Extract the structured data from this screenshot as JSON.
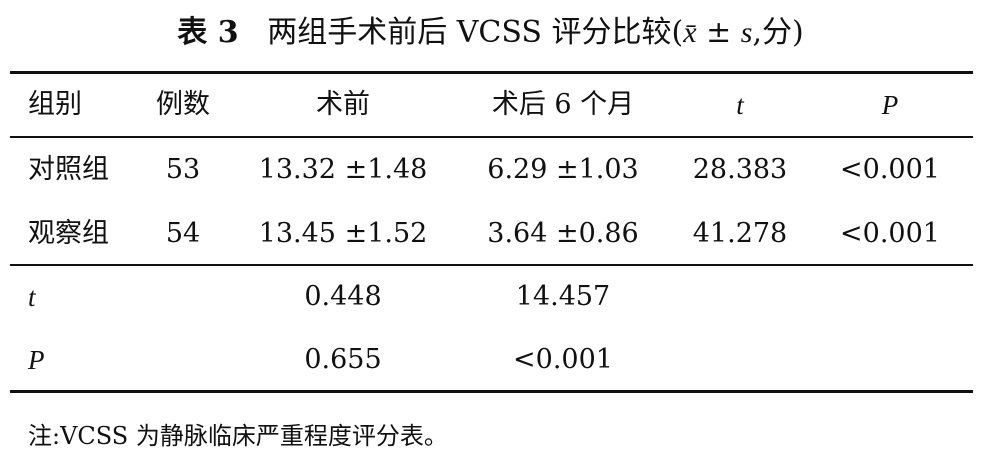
{
  "title": {
    "label": "表 3",
    "text": "两组手术前后 VCSS 评分比较(",
    "mean_symbol": "x̄",
    "plus_minus": " ± ",
    "sd_symbol": "s",
    "unit": ",分)"
  },
  "table": {
    "header": [
      "组别",
      "例数",
      "术前",
      "术后 6 个月",
      "t",
      "P"
    ],
    "rows": [
      [
        "对照组",
        "53",
        "13.32 ±1.48",
        "6.29 ±1.03",
        "28.383",
        "<0.001"
      ],
      [
        "观察组",
        "54",
        "13.45 ±1.52",
        "3.64 ±0.86",
        "41.278",
        "<0.001"
      ]
    ],
    "stats": [
      {
        "label": "t",
        "before": "0.448",
        "after": "14.457"
      },
      {
        "label": "P",
        "before": "0.655",
        "after": "<0.001"
      }
    ]
  },
  "note": "注:VCSS 为静脉临床严重程度评分表。"
}
